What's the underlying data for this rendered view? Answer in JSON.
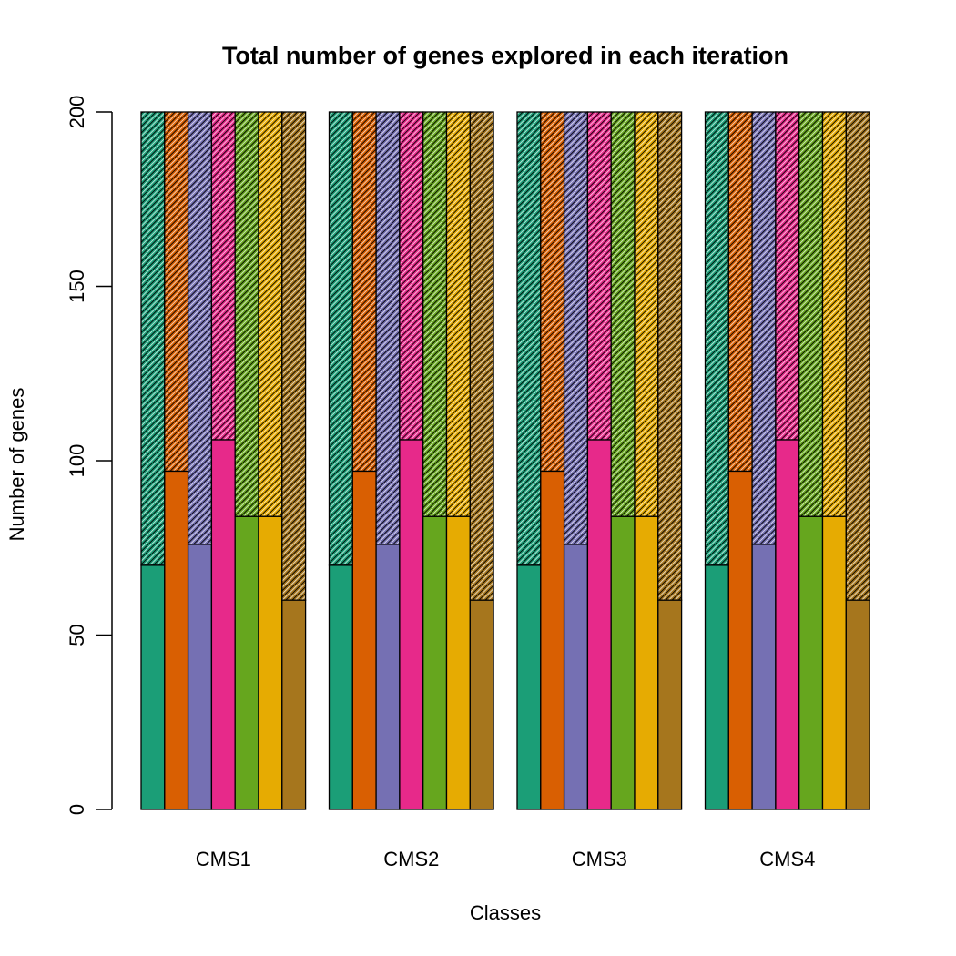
{
  "chart_data": {
    "type": "bar",
    "title": "Total number of genes explored in each iteration",
    "xlabel": "Classes",
    "ylabel": "Number of genes",
    "ylim": [
      0,
      200
    ],
    "yticks": [
      0,
      50,
      100,
      150,
      200
    ],
    "categories": [
      "CMS1",
      "CMS2",
      "CMS3",
      "CMS4"
    ],
    "stacked": true,
    "grid": false,
    "legend": "none",
    "series": [
      {
        "solid": [
          70,
          70,
          70,
          70
        ],
        "hatched": [
          130,
          130,
          130,
          130
        ],
        "total": 200,
        "color": "#1B9E77"
      },
      {
        "solid": [
          97,
          97,
          97,
          97
        ],
        "hatched": [
          103,
          103,
          103,
          103
        ],
        "total": 200,
        "color": "#D95F02"
      },
      {
        "solid": [
          76,
          76,
          76,
          76
        ],
        "hatched": [
          124,
          124,
          124,
          124
        ],
        "total": 200,
        "color": "#7570B3"
      },
      {
        "solid": [
          106,
          106,
          106,
          106
        ],
        "hatched": [
          94,
          94,
          94,
          94
        ],
        "total": 200,
        "color": "#E7298A"
      },
      {
        "solid": [
          84,
          84,
          84,
          84
        ],
        "hatched": [
          116,
          116,
          116,
          116
        ],
        "total": 200,
        "color": "#66A61E"
      },
      {
        "solid": [
          84,
          84,
          84,
          84
        ],
        "hatched": [
          116,
          116,
          116,
          116
        ],
        "total": 200,
        "color": "#E6AB02"
      },
      {
        "solid": [
          60,
          60,
          60,
          60
        ],
        "hatched": [
          140,
          140,
          140,
          140
        ],
        "total": 200,
        "color": "#A6761D"
      }
    ]
  }
}
